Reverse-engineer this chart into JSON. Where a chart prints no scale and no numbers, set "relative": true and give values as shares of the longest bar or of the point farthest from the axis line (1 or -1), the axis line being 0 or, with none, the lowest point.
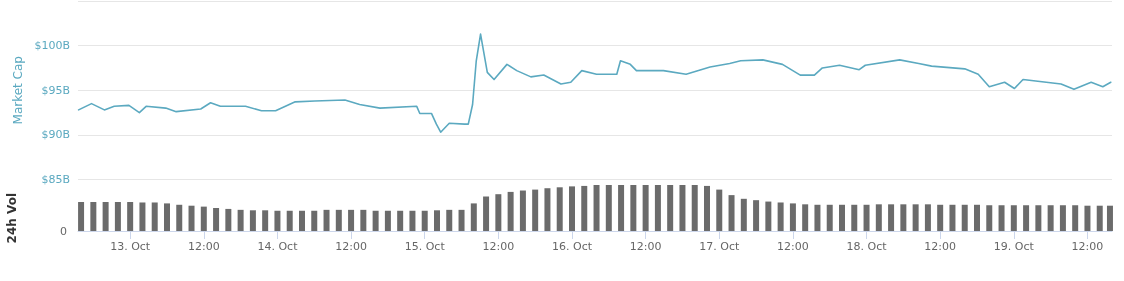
{
  "chart_data": [
    {
      "type": "line",
      "ylabel": "Market Cap",
      "color": "#5ba9c0",
      "grid": "y",
      "tick_labels": "y",
      "marker": "none",
      "line_style": "solid",
      "xlim": [
        "--10-12T15:30",
        "--10-19T16:00"
      ],
      "ylim": [
        85,
        105
      ],
      "yticks": [
        {
          "value": 85,
          "label": "$85B"
        },
        {
          "value": 90,
          "label": "$90B"
        },
        {
          "value": 95,
          "label": "$95B"
        },
        {
          "value": 100,
          "label": "$100B"
        },
        {
          "value": 105,
          "label": null
        }
      ],
      "x": [
        "--10-12T15:36",
        "--10-12T17:42",
        "--10-12T19:48",
        "--10-12T21:24",
        "--10-12T23:48",
        "--10-13T01:30",
        "--10-13T02:36",
        "--10-13T05:48",
        "--10-13T07:30",
        "--10-13T11:30",
        "--10-13T13:06",
        "--10-13T14:42",
        "--10-13T18:48",
        "--10-13T21:24",
        "--10-13T23:42",
        "--10-14T02:54",
        "--10-14T06:06",
        "--10-14T11:00",
        "--10-14T13:24",
        "--10-14T16:42",
        "--10-14T22:42",
        "--10-14T23:12",
        "--10-15T01:06",
        "--10-15T01:54",
        "--10-15T02:36",
        "--10-15T04:00",
        "--10-15T06:30",
        "--10-15T07:06",
        "--10-15T07:48",
        "--10-15T08:24",
        "--10-15T09:06",
        "--10-15T10:12",
        "--10-15T11:18",
        "--10-15T13:24",
        "--10-15T15:00",
        "--10-15T17:18",
        "--10-15T19:24",
        "--10-15T22:12",
        "--10-15T23:48",
        "--10-16T01:36",
        "--10-16T04:00",
        "--10-16T07:18",
        "--10-16T07:54",
        "--10-16T09:30",
        "--10-16T10:30",
        "--10-16T14:54",
        "--10-16T18:36",
        "--10-16T22:30",
        "--10-17T01:42",
        "--10-17T03:30",
        "--10-17T07:06",
        "--10-17T10:18",
        "--10-17T13:12",
        "--10-17T15:30",
        "--10-17T16:48",
        "--10-17T19:36",
        "--10-17T22:48",
        "--10-17T23:48",
        "--10-18T05:24",
        "--10-18T08:30",
        "--10-18T10:36",
        "--10-18T16:00",
        "--10-18T18:12",
        "--10-18T20:00",
        "--10-18T22:30",
        "--10-19T00:06",
        "--10-19T01:30",
        "--10-19T07:42",
        "--10-19T09:48",
        "--10-19T12:36",
        "--10-19T14:30",
        "--10-19T15:48"
      ],
      "values": [
        92.8,
        93.5,
        92.8,
        93.2,
        93.3,
        92.5,
        93.2,
        93.0,
        92.6,
        92.9,
        93.6,
        93.2,
        93.2,
        92.7,
        92.7,
        93.7,
        93.8,
        93.9,
        93.4,
        93.0,
        93.2,
        92.4,
        92.4,
        91.2,
        90.3,
        91.3,
        91.2,
        91.2,
        93.4,
        98.3,
        101.3,
        97.0,
        96.2,
        97.9,
        97.2,
        96.5,
        96.7,
        95.7,
        95.9,
        97.2,
        96.8,
        96.8,
        98.3,
        97.9,
        97.2,
        97.2,
        96.8,
        97.6,
        98.0,
        98.3,
        98.4,
        97.9,
        96.7,
        96.7,
        97.5,
        97.8,
        97.3,
        97.8,
        98.4,
        98.0,
        97.7,
        97.4,
        96.8,
        95.4,
        95.9,
        95.2,
        96.2,
        95.7,
        95.1,
        95.9,
        95.4,
        95.9
      ]
    },
    {
      "type": "bar",
      "relative": true,
      "ylabel": "24h Vol",
      "color": "#6b6b6b",
      "tick_labels": "x",
      "xlim": [
        "--10-12T15:30",
        "--10-19T16:00"
      ],
      "annotations": [
        "0"
      ],
      "xticks": [
        {
          "value": "--10-13",
          "label": "13. Oct"
        },
        {
          "value": "--10-13T12:00",
          "label": "12:00"
        },
        {
          "value": "--10-14",
          "label": "14. Oct"
        },
        {
          "value": "--10-14T12:00",
          "label": "12:00"
        },
        {
          "value": "--10-15",
          "label": "15. Oct"
        },
        {
          "value": "--10-15T12:00",
          "label": "12:00"
        },
        {
          "value": "--10-16",
          "label": "16. Oct"
        },
        {
          "value": "--10-16T12:00",
          "label": "12:00"
        },
        {
          "value": "--10-17",
          "label": "17. Oct"
        },
        {
          "value": "--10-17T12:00",
          "label": "12:00"
        },
        {
          "value": "--10-18",
          "label": "18. Oct"
        },
        {
          "value": "--10-18T12:00",
          "label": "12:00"
        },
        {
          "value": "--10-19",
          "label": "19. Oct"
        },
        {
          "value": "--10-19T12:00",
          "label": "12:00"
        }
      ],
      "x": [
        "--10-12T16:00",
        "--10-12T18:00",
        "--10-12T20:00",
        "--10-12T22:00",
        "--10-13T00:00",
        "--10-13T02:00",
        "--10-13T04:00",
        "--10-13T06:00",
        "--10-13T08:00",
        "--10-13T10:00",
        "--10-13T12:00",
        "--10-13T14:00",
        "--10-13T16:00",
        "--10-13T18:00",
        "--10-13T20:00",
        "--10-13T22:00",
        "--10-14T00:00",
        "--10-14T02:00",
        "--10-14T04:00",
        "--10-14T06:00",
        "--10-14T08:00",
        "--10-14T10:00",
        "--10-14T12:00",
        "--10-14T14:00",
        "--10-14T16:00",
        "--10-14T18:00",
        "--10-14T20:00",
        "--10-14T22:00",
        "--10-15T00:00",
        "--10-15T02:00",
        "--10-15T04:00",
        "--10-15T06:00",
        "--10-15T08:00",
        "--10-15T10:00",
        "--10-15T12:00",
        "--10-15T14:00",
        "--10-15T16:00",
        "--10-15T18:00",
        "--10-15T20:00",
        "--10-15T22:00",
        "--10-16T00:00",
        "--10-16T02:00",
        "--10-16T04:00",
        "--10-16T06:00",
        "--10-16T08:00",
        "--10-16T10:00",
        "--10-16T12:00",
        "--10-16T14:00",
        "--10-16T16:00",
        "--10-16T18:00",
        "--10-16T20:00",
        "--10-16T22:00",
        "--10-17T00:00",
        "--10-17T02:00",
        "--10-17T04:00",
        "--10-17T06:00",
        "--10-17T08:00",
        "--10-17T10:00",
        "--10-17T12:00",
        "--10-17T14:00",
        "--10-17T16:00",
        "--10-17T18:00",
        "--10-17T20:00",
        "--10-17T22:00",
        "--10-18T00:00",
        "--10-18T02:00",
        "--10-18T04:00",
        "--10-18T06:00",
        "--10-18T08:00",
        "--10-18T10:00",
        "--10-18T12:00",
        "--10-18T14:00",
        "--10-18T16:00",
        "--10-18T18:00",
        "--10-18T20:00",
        "--10-18T22:00",
        "--10-19T00:00",
        "--10-19T02:00",
        "--10-19T04:00",
        "--10-19T06:00",
        "--10-19T08:00",
        "--10-19T10:00",
        "--10-19T12:00",
        "--10-19T14:00",
        "--10-19T15:40"
      ],
      "values": [
        0.63,
        0.63,
        0.63,
        0.63,
        0.63,
        0.62,
        0.62,
        0.6,
        0.57,
        0.55,
        0.53,
        0.5,
        0.48,
        0.46,
        0.45,
        0.45,
        0.44,
        0.44,
        0.44,
        0.44,
        0.46,
        0.46,
        0.46,
        0.46,
        0.44,
        0.44,
        0.44,
        0.44,
        0.44,
        0.45,
        0.46,
        0.46,
        0.6,
        0.75,
        0.8,
        0.85,
        0.88,
        0.9,
        0.93,
        0.95,
        0.97,
        0.98,
        1,
        1,
        1,
        1,
        1,
        1,
        1,
        1,
        1,
        0.98,
        0.9,
        0.78,
        0.7,
        0.67,
        0.64,
        0.62,
        0.6,
        0.58,
        0.57,
        0.57,
        0.57,
        0.57,
        0.57,
        0.58,
        0.58,
        0.58,
        0.58,
        0.58,
        0.57,
        0.57,
        0.57,
        0.57,
        0.56,
        0.56,
        0.56,
        0.56,
        0.56,
        0.56,
        0.56,
        0.56,
        0.55,
        0.55,
        0.55
      ]
    }
  ]
}
